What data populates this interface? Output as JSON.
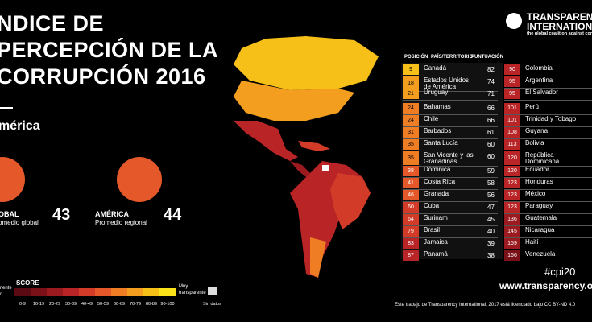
{
  "title_lines": [
    "NDICE DE",
    "PERCEPCIÓN DE LA",
    "CORRUPCIÓN 2016"
  ],
  "region": "mérica",
  "averages": [
    {
      "label": "OBAL",
      "value": 43,
      "caption": "omedio global"
    },
    {
      "label": "AMÉRICA",
      "value": 44,
      "caption": "Promedio regional"
    }
  ],
  "legend": {
    "title": "SCORE",
    "low_label": [
      "mente",
      "to"
    ],
    "high_label": [
      "Muy",
      "transparente"
    ],
    "no_data": "Sin datos",
    "ranges": [
      "0-9",
      "10-19",
      "20-29",
      "30-39",
      "40-49",
      "50-59",
      "60-69",
      "70-79",
      "80-89",
      "90-100"
    ],
    "colors": [
      "#5a0a12",
      "#7a1018",
      "#9a1a20",
      "#b92526",
      "#d23b28",
      "#e5582a",
      "#ee7d24",
      "#f39e1e",
      "#f7c018",
      "#fbe31a"
    ]
  },
  "table": {
    "headers": [
      "POSICIÓN",
      "PAÍS/TERRITORIO",
      "PUNTUACIÓN"
    ],
    "left": [
      {
        "rank": 9,
        "country": "Canadá",
        "score": 82,
        "color": "#f7c018"
      },
      {
        "rank": 18,
        "country": "Estados Unidos de América",
        "score": 74,
        "color": "#f39e1e"
      },
      {
        "rank": 21,
        "country": "Uruguay",
        "score": 71,
        "color": "#f39e1e"
      },
      {
        "rank": 24,
        "country": "Bahamas",
        "score": 66,
        "color": "#ee7d24"
      },
      {
        "rank": 24,
        "country": "Chile",
        "score": 66,
        "color": "#ee7d24"
      },
      {
        "rank": 31,
        "country": "Barbados",
        "score": 61,
        "color": "#ee7d24"
      },
      {
        "rank": 35,
        "country": "Santa Lucía",
        "score": 60,
        "color": "#ee7d24"
      },
      {
        "rank": 35,
        "country": "San Vicente y las Granadinas",
        "score": 60,
        "color": "#ee7d24"
      },
      {
        "rank": 38,
        "country": "Dominica",
        "score": 59,
        "color": "#e5582a"
      },
      {
        "rank": 41,
        "country": "Costa Rica",
        "score": 58,
        "color": "#e5582a"
      },
      {
        "rank": 46,
        "country": "Granada",
        "score": 56,
        "color": "#e5582a"
      },
      {
        "rank": 60,
        "country": "Cuba",
        "score": 47,
        "color": "#d23b28"
      },
      {
        "rank": 64,
        "country": "Surinam",
        "score": 45,
        "color": "#d23b28"
      },
      {
        "rank": 79,
        "country": "Brasil",
        "score": 40,
        "color": "#d23b28"
      },
      {
        "rank": 83,
        "country": "Jamaica",
        "score": 39,
        "color": "#b92526"
      },
      {
        "rank": 87,
        "country": "Panamá",
        "score": 38,
        "color": "#b92526"
      }
    ],
    "right": [
      {
        "rank": 90,
        "country": "Colombia",
        "color": "#b92526"
      },
      {
        "rank": 95,
        "country": "Argentina",
        "color": "#b92526"
      },
      {
        "rank": 95,
        "country": "El Salvador",
        "color": "#b92526"
      },
      {
        "rank": 101,
        "country": "Perú",
        "color": "#b92526"
      },
      {
        "rank": 101,
        "country": "Trinidad y Tobago",
        "color": "#b92526"
      },
      {
        "rank": 108,
        "country": "Guyana",
        "color": "#b92526"
      },
      {
        "rank": 113,
        "country": "Bolivia",
        "color": "#b92526"
      },
      {
        "rank": 120,
        "country": "República Dominicana",
        "color": "#b92526"
      },
      {
        "rank": 120,
        "country": "Ecuador",
        "color": "#b92526"
      },
      {
        "rank": 123,
        "country": "Honduras",
        "color": "#b92526"
      },
      {
        "rank": 123,
        "country": "México",
        "color": "#b92526"
      },
      {
        "rank": 123,
        "country": "Paraguay",
        "color": "#b92526"
      },
      {
        "rank": 136,
        "country": "Guatemala",
        "color": "#9a1a20"
      },
      {
        "rank": 145,
        "country": "Nicaragua",
        "color": "#9a1a20"
      },
      {
        "rank": 159,
        "country": "Haití",
        "color": "#9a1a20"
      },
      {
        "rank": 166,
        "country": "Venezuela",
        "color": "#7a1018"
      }
    ]
  },
  "logo": [
    "TRANSPARENC",
    "INTERNATION",
    "the global coalition against corr"
  ],
  "footer": {
    "hashtag": "#cpi20",
    "url": "www.transparency.org/",
    "license": "Este trabajo de Transparency International, 2017 está licenciado bajo CC BY-ND 4.0"
  }
}
